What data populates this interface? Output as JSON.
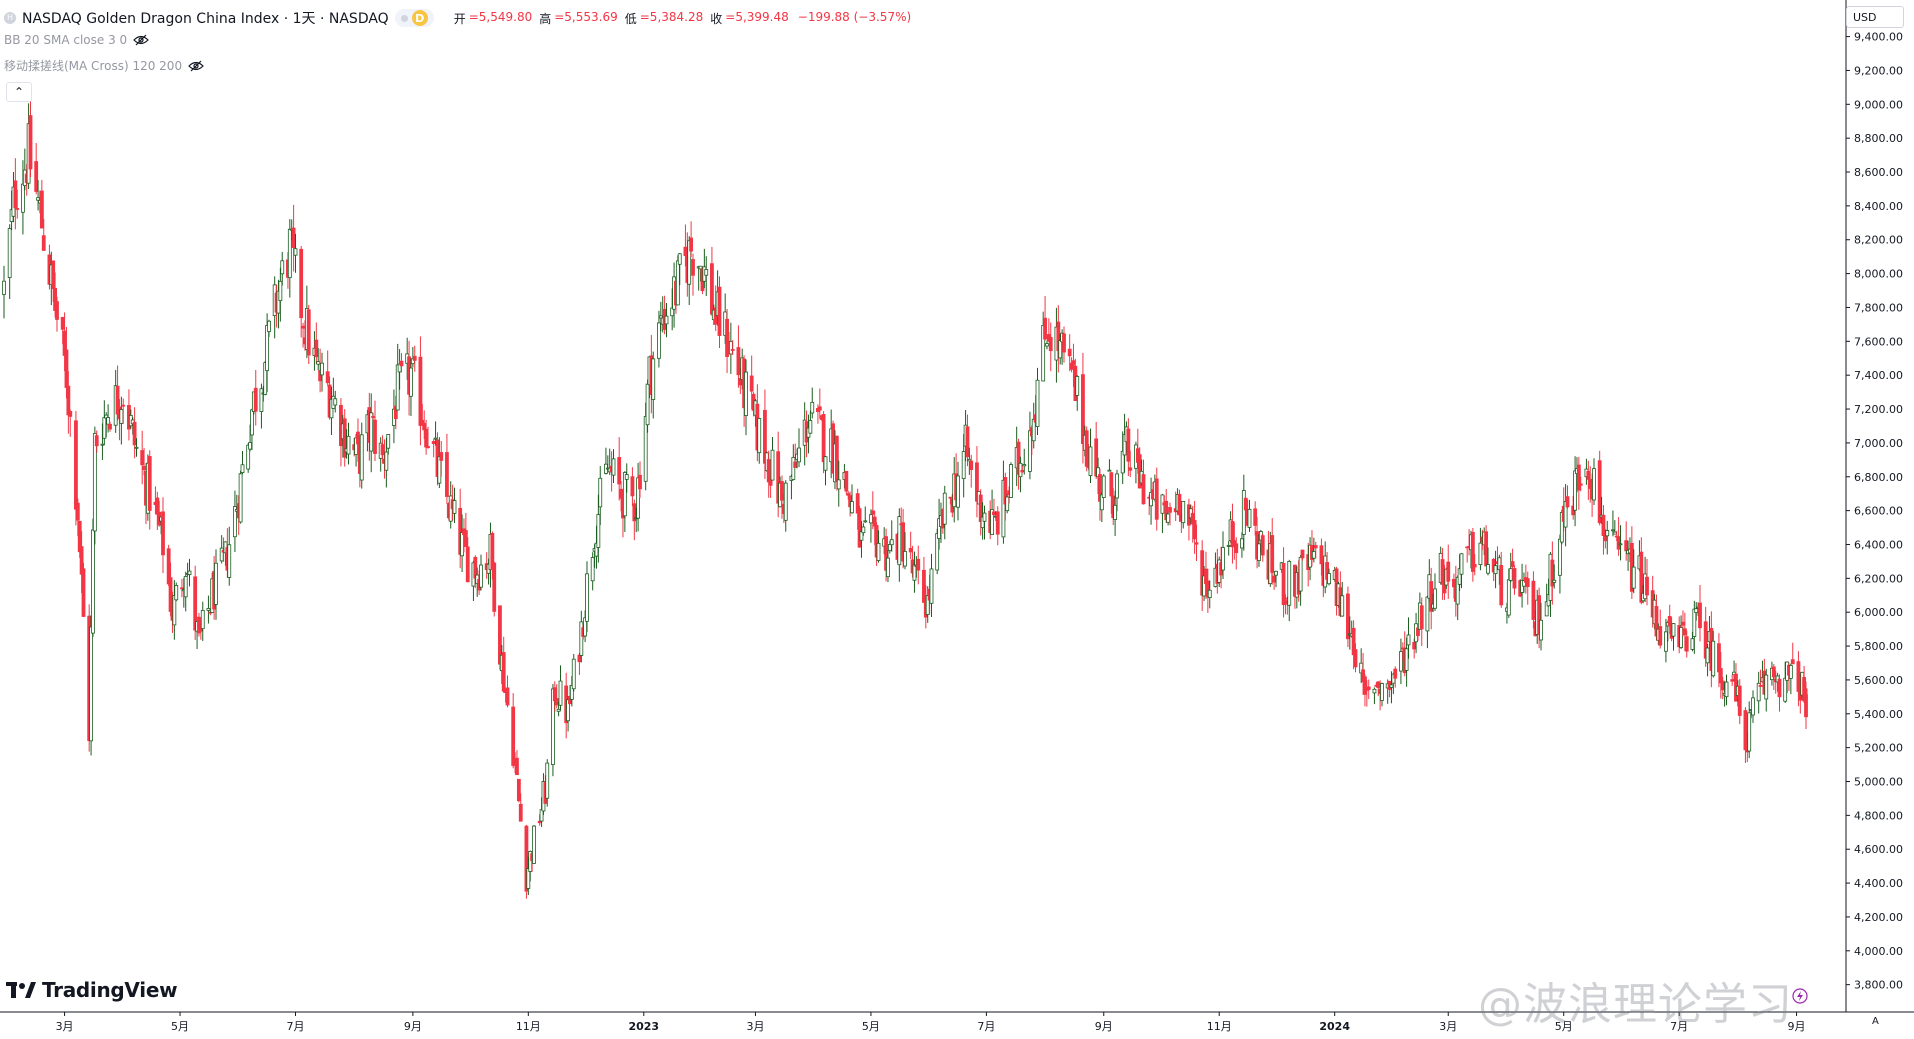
{
  "header": {
    "symbol_title": "NASDAQ Golden Dragon China Index · 1天 · NASDAQ",
    "badge_letter": "D",
    "ohlc": [
      {
        "label": "开",
        "value": "=5,549.80"
      },
      {
        "label": "高",
        "value": "=5,553.69"
      },
      {
        "label": "低",
        "value": "=5,384.28"
      },
      {
        "label": "收",
        "value": "=5,399.48"
      }
    ],
    "change": "−199.88 (−3.57%)",
    "indicator_bb": "BB 20 SMA close 3 0",
    "indicator_ma": "移动揉搓线(MA Cross) 120 200"
  },
  "currency": "USD",
  "auto_label": "A",
  "logo_text": "TradingView",
  "watermark": "@波浪理论学习",
  "colors": {
    "up": "#1b5e20",
    "down": "#f23645",
    "axis": "#131722",
    "grid_text": "#131722"
  },
  "chart_data": {
    "type": "candlestick",
    "title": "NASDAQ Golden Dragon China Index · 1天 · NASDAQ",
    "ylim": [
      3600,
      9600
    ],
    "y_ticks": [
      {
        "value": 9400,
        "label": "9,400.00"
      },
      {
        "value": 9200,
        "label": "9,200.00"
      },
      {
        "value": 9000,
        "label": "9,000.00"
      },
      {
        "value": 8800,
        "label": "8,800.00"
      },
      {
        "value": 8600,
        "label": "8,600.00"
      },
      {
        "value": 8400,
        "label": "8,400.00"
      },
      {
        "value": 8200,
        "label": "8,200.00"
      },
      {
        "value": 8000,
        "label": "8,000.00"
      },
      {
        "value": 7800,
        "label": "7,800.00"
      },
      {
        "value": 7600,
        "label": "7,600.00"
      },
      {
        "value": 7400,
        "label": "7,400.00"
      },
      {
        "value": 7200,
        "label": "7,200.00"
      },
      {
        "value": 7000,
        "label": "7,000.00"
      },
      {
        "value": 6800,
        "label": "6,800.00"
      },
      {
        "value": 6600,
        "label": "6,600.00"
      },
      {
        "value": 6400,
        "label": "6,400.00"
      },
      {
        "value": 6200,
        "label": "6,200.00"
      },
      {
        "value": 6000,
        "label": "6,000.00"
      },
      {
        "value": 5800,
        "label": "5,800.00"
      },
      {
        "value": 5600,
        "label": "5,600.00"
      },
      {
        "value": 5400,
        "label": "5,400.00"
      },
      {
        "value": 5200,
        "label": "5,200.00"
      },
      {
        "value": 5000,
        "label": "5,000.00"
      },
      {
        "value": 4800,
        "label": "4,800.00"
      },
      {
        "value": 4600,
        "label": "4,600.00"
      },
      {
        "value": 4400,
        "label": "4,400.00"
      },
      {
        "value": 4200,
        "label": "4,200.00"
      },
      {
        "value": 4000,
        "label": "4,000.00"
      },
      {
        "value": 3800,
        "label": "3,800.00"
      }
    ],
    "x_start": "2022-01-28",
    "x_end": "2024-09-06",
    "x_ticks": [
      {
        "date": "2022-03-01",
        "label": "3月"
      },
      {
        "date": "2022-05-01",
        "label": "5月"
      },
      {
        "date": "2022-07-01",
        "label": "7月"
      },
      {
        "date": "2022-09-01",
        "label": "9月"
      },
      {
        "date": "2022-11-01",
        "label": "11月"
      },
      {
        "date": "2023-01-01",
        "label": "2023"
      },
      {
        "date": "2023-03-01",
        "label": "3月"
      },
      {
        "date": "2023-05-01",
        "label": "5月"
      },
      {
        "date": "2023-07-01",
        "label": "7月"
      },
      {
        "date": "2023-09-01",
        "label": "9月"
      },
      {
        "date": "2023-11-01",
        "label": "11月"
      },
      {
        "date": "2024-01-01",
        "label": "2024"
      },
      {
        "date": "2024-03-01",
        "label": "3月"
      },
      {
        "date": "2024-05-01",
        "label": "5月"
      },
      {
        "date": "2024-07-01",
        "label": "7月"
      },
      {
        "date": "2024-09-01",
        "label": "9月"
      }
    ],
    "close_path": [
      {
        "date": "2022-01-28",
        "close": 7900
      },
      {
        "date": "2022-02-03",
        "close": 8500
      },
      {
        "date": "2022-02-10",
        "close": 8700
      },
      {
        "date": "2022-02-17",
        "close": 8300
      },
      {
        "date": "2022-02-24",
        "close": 7800
      },
      {
        "date": "2022-03-02",
        "close": 7400
      },
      {
        "date": "2022-03-08",
        "close": 6600
      },
      {
        "date": "2022-03-14",
        "close": 5300
      },
      {
        "date": "2022-03-17",
        "close": 7000
      },
      {
        "date": "2022-03-24",
        "close": 7200
      },
      {
        "date": "2022-04-01",
        "close": 7300
      },
      {
        "date": "2022-04-08",
        "close": 6950
      },
      {
        "date": "2022-04-15",
        "close": 6700
      },
      {
        "date": "2022-04-22",
        "close": 6400
      },
      {
        "date": "2022-04-27",
        "close": 6000
      },
      {
        "date": "2022-05-04",
        "close": 6300
      },
      {
        "date": "2022-05-11",
        "close": 5800
      },
      {
        "date": "2022-05-18",
        "close": 6100
      },
      {
        "date": "2022-05-25",
        "close": 6300
      },
      {
        "date": "2022-06-01",
        "close": 6700
      },
      {
        "date": "2022-06-08",
        "close": 7200
      },
      {
        "date": "2022-06-15",
        "close": 7500
      },
      {
        "date": "2022-06-22",
        "close": 7900
      },
      {
        "date": "2022-06-28",
        "close": 8150
      },
      {
        "date": "2022-07-06",
        "close": 7700
      },
      {
        "date": "2022-07-13",
        "close": 7400
      },
      {
        "date": "2022-07-20",
        "close": 7300
      },
      {
        "date": "2022-07-27",
        "close": 7050
      },
      {
        "date": "2022-08-03",
        "close": 6900
      },
      {
        "date": "2022-08-10",
        "close": 7100
      },
      {
        "date": "2022-08-16",
        "close": 6900
      },
      {
        "date": "2022-08-24",
        "close": 7300
      },
      {
        "date": "2022-08-31",
        "close": 7400
      },
      {
        "date": "2022-09-07",
        "close": 7150
      },
      {
        "date": "2022-09-14",
        "close": 6850
      },
      {
        "date": "2022-09-21",
        "close": 6600
      },
      {
        "date": "2022-09-28",
        "close": 6350
      },
      {
        "date": "2022-10-05",
        "close": 6250
      },
      {
        "date": "2022-10-12",
        "close": 6350
      },
      {
        "date": "2022-10-18",
        "close": 5700
      },
      {
        "date": "2022-10-24",
        "close": 5200
      },
      {
        "date": "2022-10-31",
        "close": 4450
      },
      {
        "date": "2022-11-03",
        "close": 4600
      },
      {
        "date": "2022-11-10",
        "close": 4950
      },
      {
        "date": "2022-11-15",
        "close": 5550
      },
      {
        "date": "2022-11-22",
        "close": 5400
      },
      {
        "date": "2022-11-29",
        "close": 5900
      },
      {
        "date": "2022-12-06",
        "close": 6500
      },
      {
        "date": "2022-12-13",
        "close": 6850
      },
      {
        "date": "2022-12-20",
        "close": 6700
      },
      {
        "date": "2022-12-28",
        "close": 6650
      },
      {
        "date": "2023-01-04",
        "close": 7400
      },
      {
        "date": "2023-01-11",
        "close": 7750
      },
      {
        "date": "2023-01-18",
        "close": 7900
      },
      {
        "date": "2023-01-26",
        "close": 8150
      },
      {
        "date": "2023-02-01",
        "close": 8050
      },
      {
        "date": "2023-02-08",
        "close": 7750
      },
      {
        "date": "2023-02-15",
        "close": 7600
      },
      {
        "date": "2023-02-22",
        "close": 7350
      },
      {
        "date": "2023-03-01",
        "close": 7100
      },
      {
        "date": "2023-03-08",
        "close": 6900
      },
      {
        "date": "2023-03-15",
        "close": 6650
      },
      {
        "date": "2023-03-22",
        "close": 6850
      },
      {
        "date": "2023-03-29",
        "close": 7150
      },
      {
        "date": "2023-04-05",
        "close": 7050
      },
      {
        "date": "2023-04-12",
        "close": 6950
      },
      {
        "date": "2023-04-19",
        "close": 6700
      },
      {
        "date": "2023-04-26",
        "close": 6400
      },
      {
        "date": "2023-05-03",
        "close": 6450
      },
      {
        "date": "2023-05-10",
        "close": 6350
      },
      {
        "date": "2023-05-17",
        "close": 6450
      },
      {
        "date": "2023-05-24",
        "close": 6200
      },
      {
        "date": "2023-05-31",
        "close": 6050
      },
      {
        "date": "2023-06-07",
        "close": 6500
      },
      {
        "date": "2023-06-14",
        "close": 6750
      },
      {
        "date": "2023-06-20",
        "close": 6950
      },
      {
        "date": "2023-06-27",
        "close": 6650
      },
      {
        "date": "2023-07-05",
        "close": 6500
      },
      {
        "date": "2023-07-12",
        "close": 6700
      },
      {
        "date": "2023-07-19",
        "close": 6900
      },
      {
        "date": "2023-07-26",
        "close": 7200
      },
      {
        "date": "2023-08-02",
        "close": 7700
      },
      {
        "date": "2023-08-09",
        "close": 7550
      },
      {
        "date": "2023-08-16",
        "close": 7350
      },
      {
        "date": "2023-08-23",
        "close": 7000
      },
      {
        "date": "2023-08-30",
        "close": 6750
      },
      {
        "date": "2023-09-06",
        "close": 6700
      },
      {
        "date": "2023-09-13",
        "close": 6950
      },
      {
        "date": "2023-09-20",
        "close": 6800
      },
      {
        "date": "2023-09-27",
        "close": 6650
      },
      {
        "date": "2023-10-04",
        "close": 6550
      },
      {
        "date": "2023-10-11",
        "close": 6700
      },
      {
        "date": "2023-10-18",
        "close": 6450
      },
      {
        "date": "2023-10-25",
        "close": 6150
      },
      {
        "date": "2023-11-01",
        "close": 6300
      },
      {
        "date": "2023-11-08",
        "close": 6450
      },
      {
        "date": "2023-11-15",
        "close": 6600
      },
      {
        "date": "2023-11-22",
        "close": 6400
      },
      {
        "date": "2023-11-29",
        "close": 6250
      },
      {
        "date": "2023-12-06",
        "close": 6150
      },
      {
        "date": "2023-12-13",
        "close": 6200
      },
      {
        "date": "2023-12-20",
        "close": 6300
      },
      {
        "date": "2023-12-28",
        "close": 6250
      },
      {
        "date": "2024-01-04",
        "close": 6050
      },
      {
        "date": "2024-01-11",
        "close": 5850
      },
      {
        "date": "2024-01-17",
        "close": 5450
      },
      {
        "date": "2024-01-22",
        "close": 5600
      },
      {
        "date": "2024-01-29",
        "close": 5550
      },
      {
        "date": "2024-02-05",
        "close": 5700
      },
      {
        "date": "2024-02-12",
        "close": 5900
      },
      {
        "date": "2024-02-19",
        "close": 6100
      },
      {
        "date": "2024-02-26",
        "close": 6250
      },
      {
        "date": "2024-03-04",
        "close": 6150
      },
      {
        "date": "2024-03-11",
        "close": 6300
      },
      {
        "date": "2024-03-18",
        "close": 6400
      },
      {
        "date": "2024-03-25",
        "close": 6250
      },
      {
        "date": "2024-04-01",
        "close": 6100
      },
      {
        "date": "2024-04-08",
        "close": 6200
      },
      {
        "date": "2024-04-15",
        "close": 5900
      },
      {
        "date": "2024-04-22",
        "close": 6100
      },
      {
        "date": "2024-04-29",
        "close": 6500
      },
      {
        "date": "2024-05-06",
        "close": 6700
      },
      {
        "date": "2024-05-13",
        "close": 6950
      },
      {
        "date": "2024-05-20",
        "close": 6600
      },
      {
        "date": "2024-05-27",
        "close": 6350
      },
      {
        "date": "2024-06-03",
        "close": 6300
      },
      {
        "date": "2024-06-10",
        "close": 6200
      },
      {
        "date": "2024-06-17",
        "close": 6000
      },
      {
        "date": "2024-06-24",
        "close": 5850
      },
      {
        "date": "2024-07-01",
        "close": 5800
      },
      {
        "date": "2024-07-08",
        "close": 5950
      },
      {
        "date": "2024-07-15",
        "close": 5850
      },
      {
        "date": "2024-07-22",
        "close": 5650
      },
      {
        "date": "2024-07-29",
        "close": 5600
      },
      {
        "date": "2024-08-05",
        "close": 5250
      },
      {
        "date": "2024-08-12",
        "close": 5500
      },
      {
        "date": "2024-08-19",
        "close": 5650
      },
      {
        "date": "2024-08-26",
        "close": 5600
      },
      {
        "date": "2024-09-03",
        "close": 5600
      },
      {
        "date": "2024-09-06",
        "close": 5400
      }
    ],
    "last_candle": {
      "open": 5549.8,
      "high": 5553.69,
      "low": 5384.28,
      "close": 5399.48
    }
  }
}
